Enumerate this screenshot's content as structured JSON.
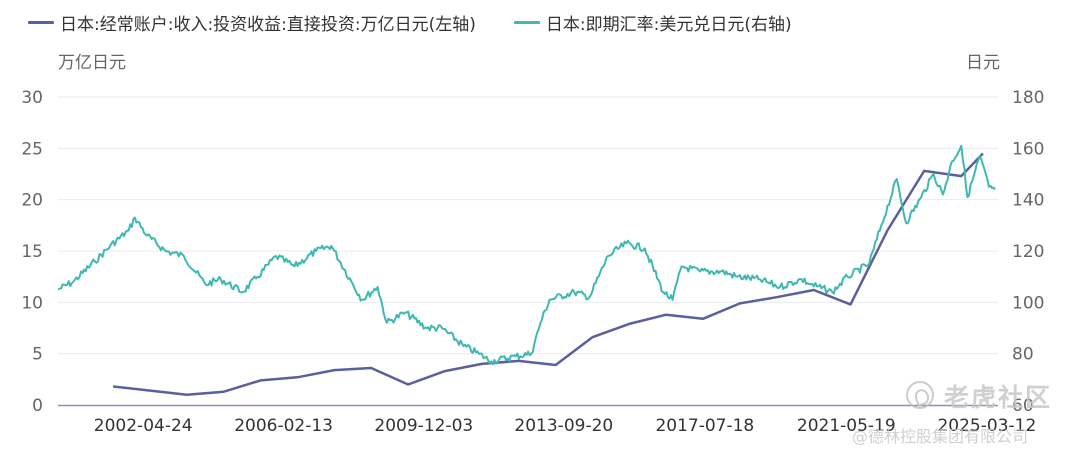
{
  "chart_data": {
    "type": "line",
    "legend": {
      "placement": "top-left",
      "items": [
        {
          "label": "日本:经常账户:收入:投资收益:直接投资:万亿日元(左轴)",
          "color": "#5b5f9e"
        },
        {
          "label": "日本:即期汇率:美元兑日元(右轴)",
          "color": "#3fb9b0"
        }
      ]
    },
    "left_axis": {
      "unit_label": "万亿日元",
      "range": [
        0,
        30
      ],
      "ticks": [
        "30",
        "25",
        "20",
        "15",
        "10",
        "5",
        "0"
      ]
    },
    "right_axis": {
      "unit_label": "日元",
      "range": [
        60,
        180
      ],
      "ticks": [
        "180",
        "160",
        "140",
        "120",
        "100",
        "80",
        "60"
      ]
    },
    "x_axis": {
      "range": [
        "2000-01-01",
        "2025-06-30"
      ],
      "tick_labels": [
        "2002-04-24",
        "2006-02-13",
        "2009-12-03",
        "2013-09-20",
        "2017-07-18",
        "2021-05-19",
        "2025-03-12"
      ]
    },
    "grid": "horizontal",
    "series": [
      {
        "name": "日本:经常账户:收入:投资收益:直接投资:万亿日元(左轴)",
        "axis": "left",
        "color": "#5b5f9e",
        "x": [
          "2001-06-30",
          "2003-06-30",
          "2004-06-30",
          "2005-06-30",
          "2006-06-30",
          "2007-06-30",
          "2008-06-30",
          "2009-06-30",
          "2010-06-30",
          "2011-06-30",
          "2012-06-30",
          "2013-06-30",
          "2014-06-30",
          "2015-06-30",
          "2016-06-30",
          "2017-06-30",
          "2018-06-30",
          "2019-06-30",
          "2020-06-30",
          "2021-06-30",
          "2022-06-30",
          "2023-06-30",
          "2024-06-30",
          "2025-01-31"
        ],
        "values": [
          1.8,
          1.0,
          1.3,
          2.4,
          2.7,
          3.4,
          3.6,
          2.0,
          3.3,
          4.0,
          4.3,
          3.9,
          6.6,
          7.9,
          8.8,
          8.4,
          9.9,
          10.5,
          11.2,
          9.8,
          17.0,
          22.8,
          22.3,
          24.5
        ]
      },
      {
        "name": "日本:即期汇率:美元兑日元(右轴)",
        "axis": "right",
        "color": "#3fb9b0",
        "x": [
          "2000-01-01",
          "2000-06-01",
          "2001-01-01",
          "2001-06-01",
          "2001-12-01",
          "2002-02-01",
          "2002-06-01",
          "2002-12-01",
          "2003-06-01",
          "2004-01-01",
          "2004-06-01",
          "2005-01-01",
          "2005-06-01",
          "2005-12-01",
          "2006-06-01",
          "2007-01-01",
          "2007-06-01",
          "2008-01-01",
          "2008-04-01",
          "2008-09-01",
          "2008-12-01",
          "2009-06-01",
          "2010-01-01",
          "2010-06-01",
          "2011-01-01",
          "2011-06-01",
          "2011-10-01",
          "2012-06-01",
          "2012-11-01",
          "2013-02-01",
          "2013-05-01",
          "2014-01-01",
          "2014-06-01",
          "2014-12-01",
          "2015-06-01",
          "2015-12-01",
          "2016-06-01",
          "2016-09-01",
          "2016-12-01",
          "2017-06-01",
          "2018-01-01",
          "2018-06-01",
          "2019-01-01",
          "2019-08-01",
          "2020-03-01",
          "2020-06-01",
          "2021-01-01",
          "2021-06-01",
          "2022-01-01",
          "2022-05-01",
          "2022-10-01",
          "2023-01-01",
          "2023-06-01",
          "2023-10-01",
          "2024-01-01",
          "2024-04-01",
          "2024-07-01",
          "2024-09-01",
          "2025-01-01",
          "2025-04-01",
          "2025-06-01"
        ],
        "values": [
          105,
          108,
          116,
          122,
          128,
          133,
          126,
          120,
          118,
          107,
          109,
          104,
          110,
          118,
          114,
          120,
          122,
          107,
          101,
          106,
          92,
          96,
          90,
          90,
          83,
          80,
          77,
          79,
          80,
          92,
          101,
          104,
          102,
          118,
          123,
          121,
          104,
          101,
          114,
          112,
          112,
          110,
          109,
          106,
          109,
          107,
          104,
          110,
          115,
          130,
          148,
          131,
          141,
          150,
          142,
          155,
          161,
          141,
          157,
          145,
          144
        ]
      }
    ]
  },
  "watermark": {
    "main": "老虎社区",
    "sub": "@德林控股集团有限公司"
  }
}
